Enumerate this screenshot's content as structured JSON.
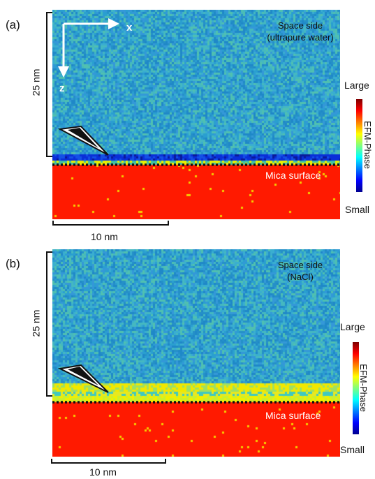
{
  "panels": [
    {
      "label": "(a)",
      "space_side_line1": "Space side",
      "space_side_line2": "(ultrapure water)",
      "surface_label": "Mica surface",
      "vertical_scale": "25 nm",
      "horizontal_scale": "10 nm",
      "axis_x": "x",
      "axis_z": "z",
      "colorbar_title": "EFM-Phase",
      "colorbar_high": "Large",
      "colorbar_low": "Small",
      "interface_band": "dark-blue"
    },
    {
      "label": "(b)",
      "space_side_line1": "Space side",
      "space_side_line2": "(NaCl)",
      "surface_label": "Mica surface",
      "vertical_scale": "25 nm",
      "horizontal_scale": "10 nm",
      "colorbar_title": "EFM-Phase",
      "colorbar_high": "Large",
      "colorbar_low": "Small",
      "interface_band": "yellow"
    }
  ],
  "colors": {
    "colormap": [
      "#00008f",
      "#0000ff",
      "#007fff",
      "#00ffff",
      "#7fff7f",
      "#ffff00",
      "#ff7f00",
      "#ff0000",
      "#7f0000"
    ],
    "background": "#2aa0c8",
    "mica": "#ff0000"
  }
}
